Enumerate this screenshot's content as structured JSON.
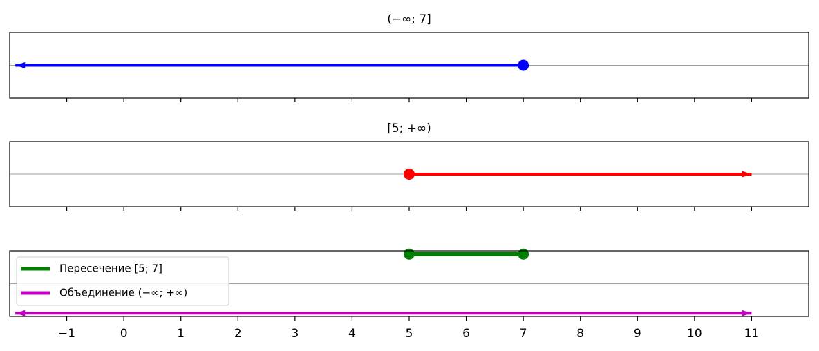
{
  "chart_data": {
    "type": "line",
    "xlim": [
      -2,
      12
    ],
    "xticks": [
      {
        "value": -1,
        "label": "−1"
      },
      0,
      1,
      2,
      3,
      4,
      5,
      6,
      7,
      8,
      9,
      10,
      11
    ],
    "axhline": 0,
    "legend": "upper left",
    "panels": [
      {
        "title": "(−∞;  7]",
        "ylim": [
          -1,
          1
        ],
        "series": [
          {
            "color": "#0000ff",
            "x": [
              -1.9,
              7
            ],
            "y": [
              0,
              0
            ],
            "endpoints": [
              "arrow",
              "dot"
            ]
          }
        ]
      },
      {
        "title": "[5;  +∞)",
        "ylim": [
          -1,
          1
        ],
        "series": [
          {
            "color": "#ff0000",
            "x": [
              5,
              11
            ],
            "y": [
              0,
              0
            ],
            "endpoints": [
              "dot",
              "arrow"
            ]
          }
        ]
      },
      {
        "ylim": [
          -1,
          1
        ],
        "series": [
          {
            "name": "Пересечение [5; 7]",
            "color": "#008000",
            "x": [
              5,
              7
            ],
            "y": [
              0.9,
              0.9
            ],
            "endpoints": [
              "dot",
              "dot"
            ]
          },
          {
            "name": "Объединение (−∞;  +∞)",
            "color": "#bf00bf",
            "x": [
              -1.9,
              11
            ],
            "y": [
              -0.9,
              -0.9
            ],
            "endpoints": [
              "arrow",
              "arrow"
            ]
          }
        ]
      }
    ]
  }
}
